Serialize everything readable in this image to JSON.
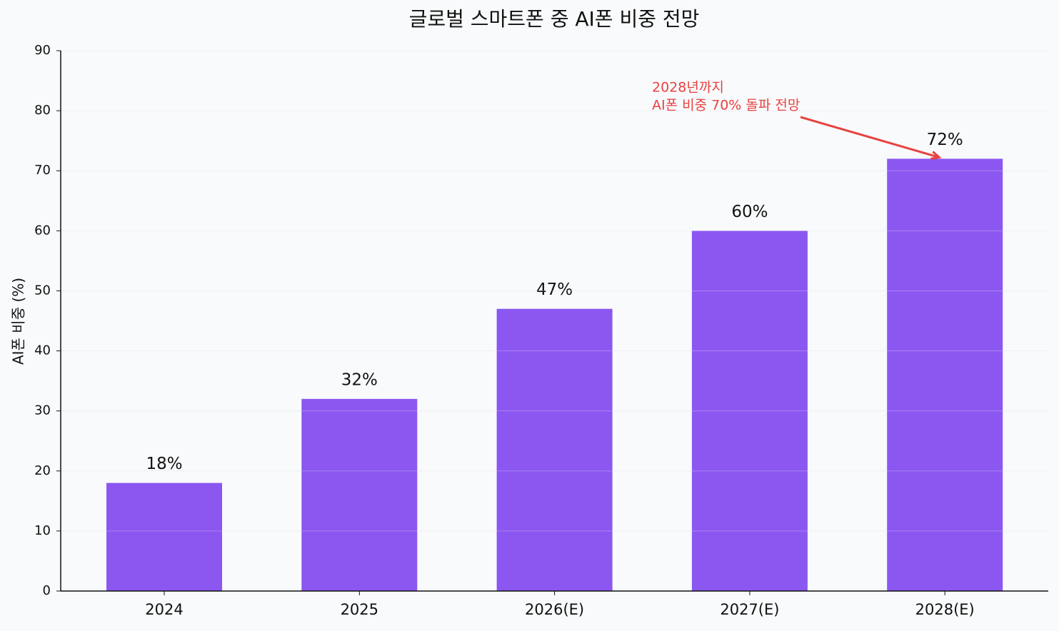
{
  "chart_data": {
    "type": "bar",
    "title": "글로벌 스마트폰 중 AI폰 비중 전망",
    "y_label": "AI폰 비중 (%)",
    "categories": [
      "2024",
      "2025",
      "2026(E)",
      "2027(E)",
      "2028(E)"
    ],
    "values": [
      18,
      32,
      47,
      60,
      72
    ],
    "value_labels": [
      "18%",
      "32%",
      "47%",
      "60%",
      "72%"
    ],
    "color": "#8b57f0",
    "ylim": [
      0,
      90
    ],
    "yticks": [
      0,
      10,
      20,
      30,
      40,
      50,
      60,
      70,
      80,
      90
    ],
    "grid": true,
    "annotation": {
      "lines": [
        "2028년까지",
        "AI폰 비중 70% 돌파 전망"
      ],
      "color": "#e8423f"
    }
  }
}
